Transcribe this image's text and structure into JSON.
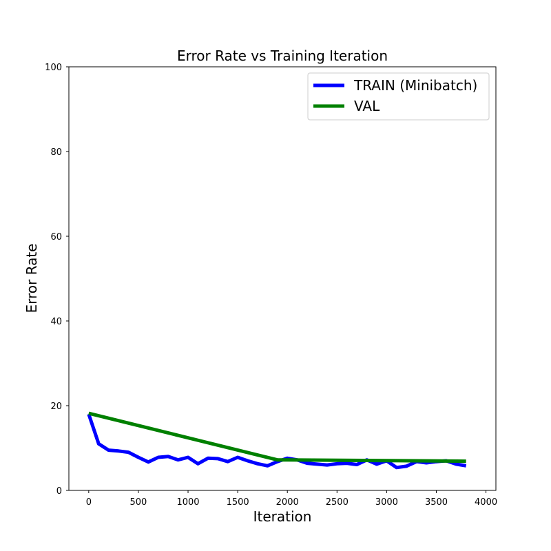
{
  "chart_data": {
    "type": "line",
    "title": "Error Rate vs Training Iteration",
    "xlabel": "Iteration",
    "ylabel": "Error Rate",
    "xlim": [
      -200,
      4100
    ],
    "ylim": [
      0,
      100
    ],
    "xticks": [
      0,
      500,
      1000,
      1500,
      2000,
      2500,
      3000,
      3500,
      4000
    ],
    "yticks": [
      0,
      20,
      40,
      60,
      80,
      100
    ],
    "grid": false,
    "legend_position": "top-right",
    "series": [
      {
        "name": "TRAIN (Minibatch)",
        "color": "#0000ff",
        "x": [
          0,
          100,
          200,
          300,
          400,
          500,
          600,
          700,
          800,
          900,
          1000,
          1100,
          1200,
          1300,
          1400,
          1500,
          1600,
          1700,
          1800,
          1900,
          2000,
          2100,
          2200,
          2300,
          2400,
          2500,
          2600,
          2700,
          2800,
          2900,
          3000,
          3100,
          3200,
          3300,
          3400,
          3500,
          3600,
          3700,
          3800
        ],
        "y": [
          18.0,
          11.0,
          9.5,
          9.3,
          9.0,
          7.8,
          6.7,
          7.8,
          8.0,
          7.2,
          7.8,
          6.3,
          7.6,
          7.5,
          6.8,
          7.8,
          7.0,
          6.3,
          5.8,
          6.8,
          7.6,
          7.2,
          6.4,
          6.2,
          6.0,
          6.3,
          6.4,
          6.1,
          7.2,
          6.2,
          7.0,
          5.4,
          5.7,
          6.8,
          6.5,
          6.8,
          7.0,
          6.2,
          5.8
        ]
      },
      {
        "name": "VAL",
        "color": "#008000",
        "x": [
          0,
          1900,
          2000,
          3800
        ],
        "y": [
          18.2,
          7.2,
          7.2,
          6.9
        ]
      }
    ]
  }
}
